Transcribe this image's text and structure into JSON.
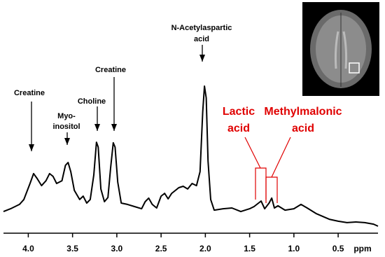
{
  "chart_data": {
    "type": "line",
    "x": [
      4.28,
      4.2,
      4.1,
      4.05,
      3.98,
      3.94,
      3.9,
      3.85,
      3.8,
      3.76,
      3.72,
      3.68,
      3.62,
      3.58,
      3.55,
      3.52,
      3.48,
      3.42,
      3.38,
      3.34,
      3.3,
      3.26,
      3.23,
      3.21,
      3.18,
      3.14,
      3.1,
      3.07,
      3.04,
      3.02,
      2.99,
      2.95,
      2.88,
      2.8,
      2.72,
      2.68,
      2.64,
      2.6,
      2.55,
      2.5,
      2.46,
      2.42,
      2.38,
      2.3,
      2.25,
      2.2,
      2.15,
      2.1,
      2.06,
      2.03,
      2.01,
      1.99,
      1.97,
      1.94,
      1.9,
      1.8,
      1.7,
      1.6,
      1.55,
      1.5,
      1.45,
      1.4,
      1.37,
      1.33,
      1.28,
      1.25,
      1.22,
      1.18,
      1.1,
      1.0,
      0.92,
      0.85,
      0.75,
      0.6,
      0.5,
      0.4,
      0.3,
      0.2,
      0.1,
      0.05
    ],
    "values": [
      12.7,
      14.5,
      17.3,
      20.5,
      30.9,
      37.3,
      34.1,
      29.5,
      32.7,
      37.3,
      35.5,
      30.9,
      32.7,
      42.7,
      44.5,
      38.6,
      26.4,
      20.5,
      22.7,
      18.2,
      20.5,
      36.4,
      57.7,
      54.5,
      27.3,
      19.1,
      21.8,
      40.9,
      57.3,
      54.5,
      31.8,
      18.2,
      17.3,
      15.9,
      14.5,
      19.1,
      21.4,
      17.3,
      15,
      22.7,
      24.5,
      20.9,
      24.5,
      28.2,
      29.1,
      27.3,
      30.9,
      29.5,
      38.6,
      77.3,
      94.1,
      86.4,
      45.5,
      20.5,
      13.6,
      14.5,
      15,
      12.7,
      13.6,
      14.5,
      15.9,
      18.2,
      19.5,
      14.5,
      18.2,
      21.4,
      15,
      16.4,
      13.6,
      14.5,
      17.3,
      15,
      11.4,
      7.7,
      6.4,
      5.5,
      5.9,
      5.5,
      4.5,
      3.2
    ],
    "color": "#000000",
    "xlim": [
      4.28,
      0.05
    ],
    "ylim": [
      0,
      100
    ],
    "xticks": [
      {
        "value": 4,
        "label": "4.0"
      },
      3.5,
      {
        "value": 3,
        "label": "3.0"
      },
      2.5,
      {
        "value": 2,
        "label": "2.0"
      },
      1.5,
      {
        "value": 1,
        "label": "1.0"
      },
      0.5
    ],
    "x_label": "ppm",
    "annotations": [
      {
        "lines": [
          "Creatine"
        ]
      },
      {
        "lines": [
          "Myo-",
          "inositol"
        ]
      },
      {
        "lines": [
          "Choline"
        ]
      },
      {
        "lines": [
          "Creatine"
        ]
      },
      {
        "lines": [
          "N-Acetylaspartic",
          "acid"
        ]
      },
      {
        "lines": [
          "Lactic",
          "acid"
        ],
        "color": "#e00000"
      },
      {
        "lines": [
          "Methylmalonic",
          "acid"
        ],
        "color": "#e00000"
      }
    ]
  }
}
